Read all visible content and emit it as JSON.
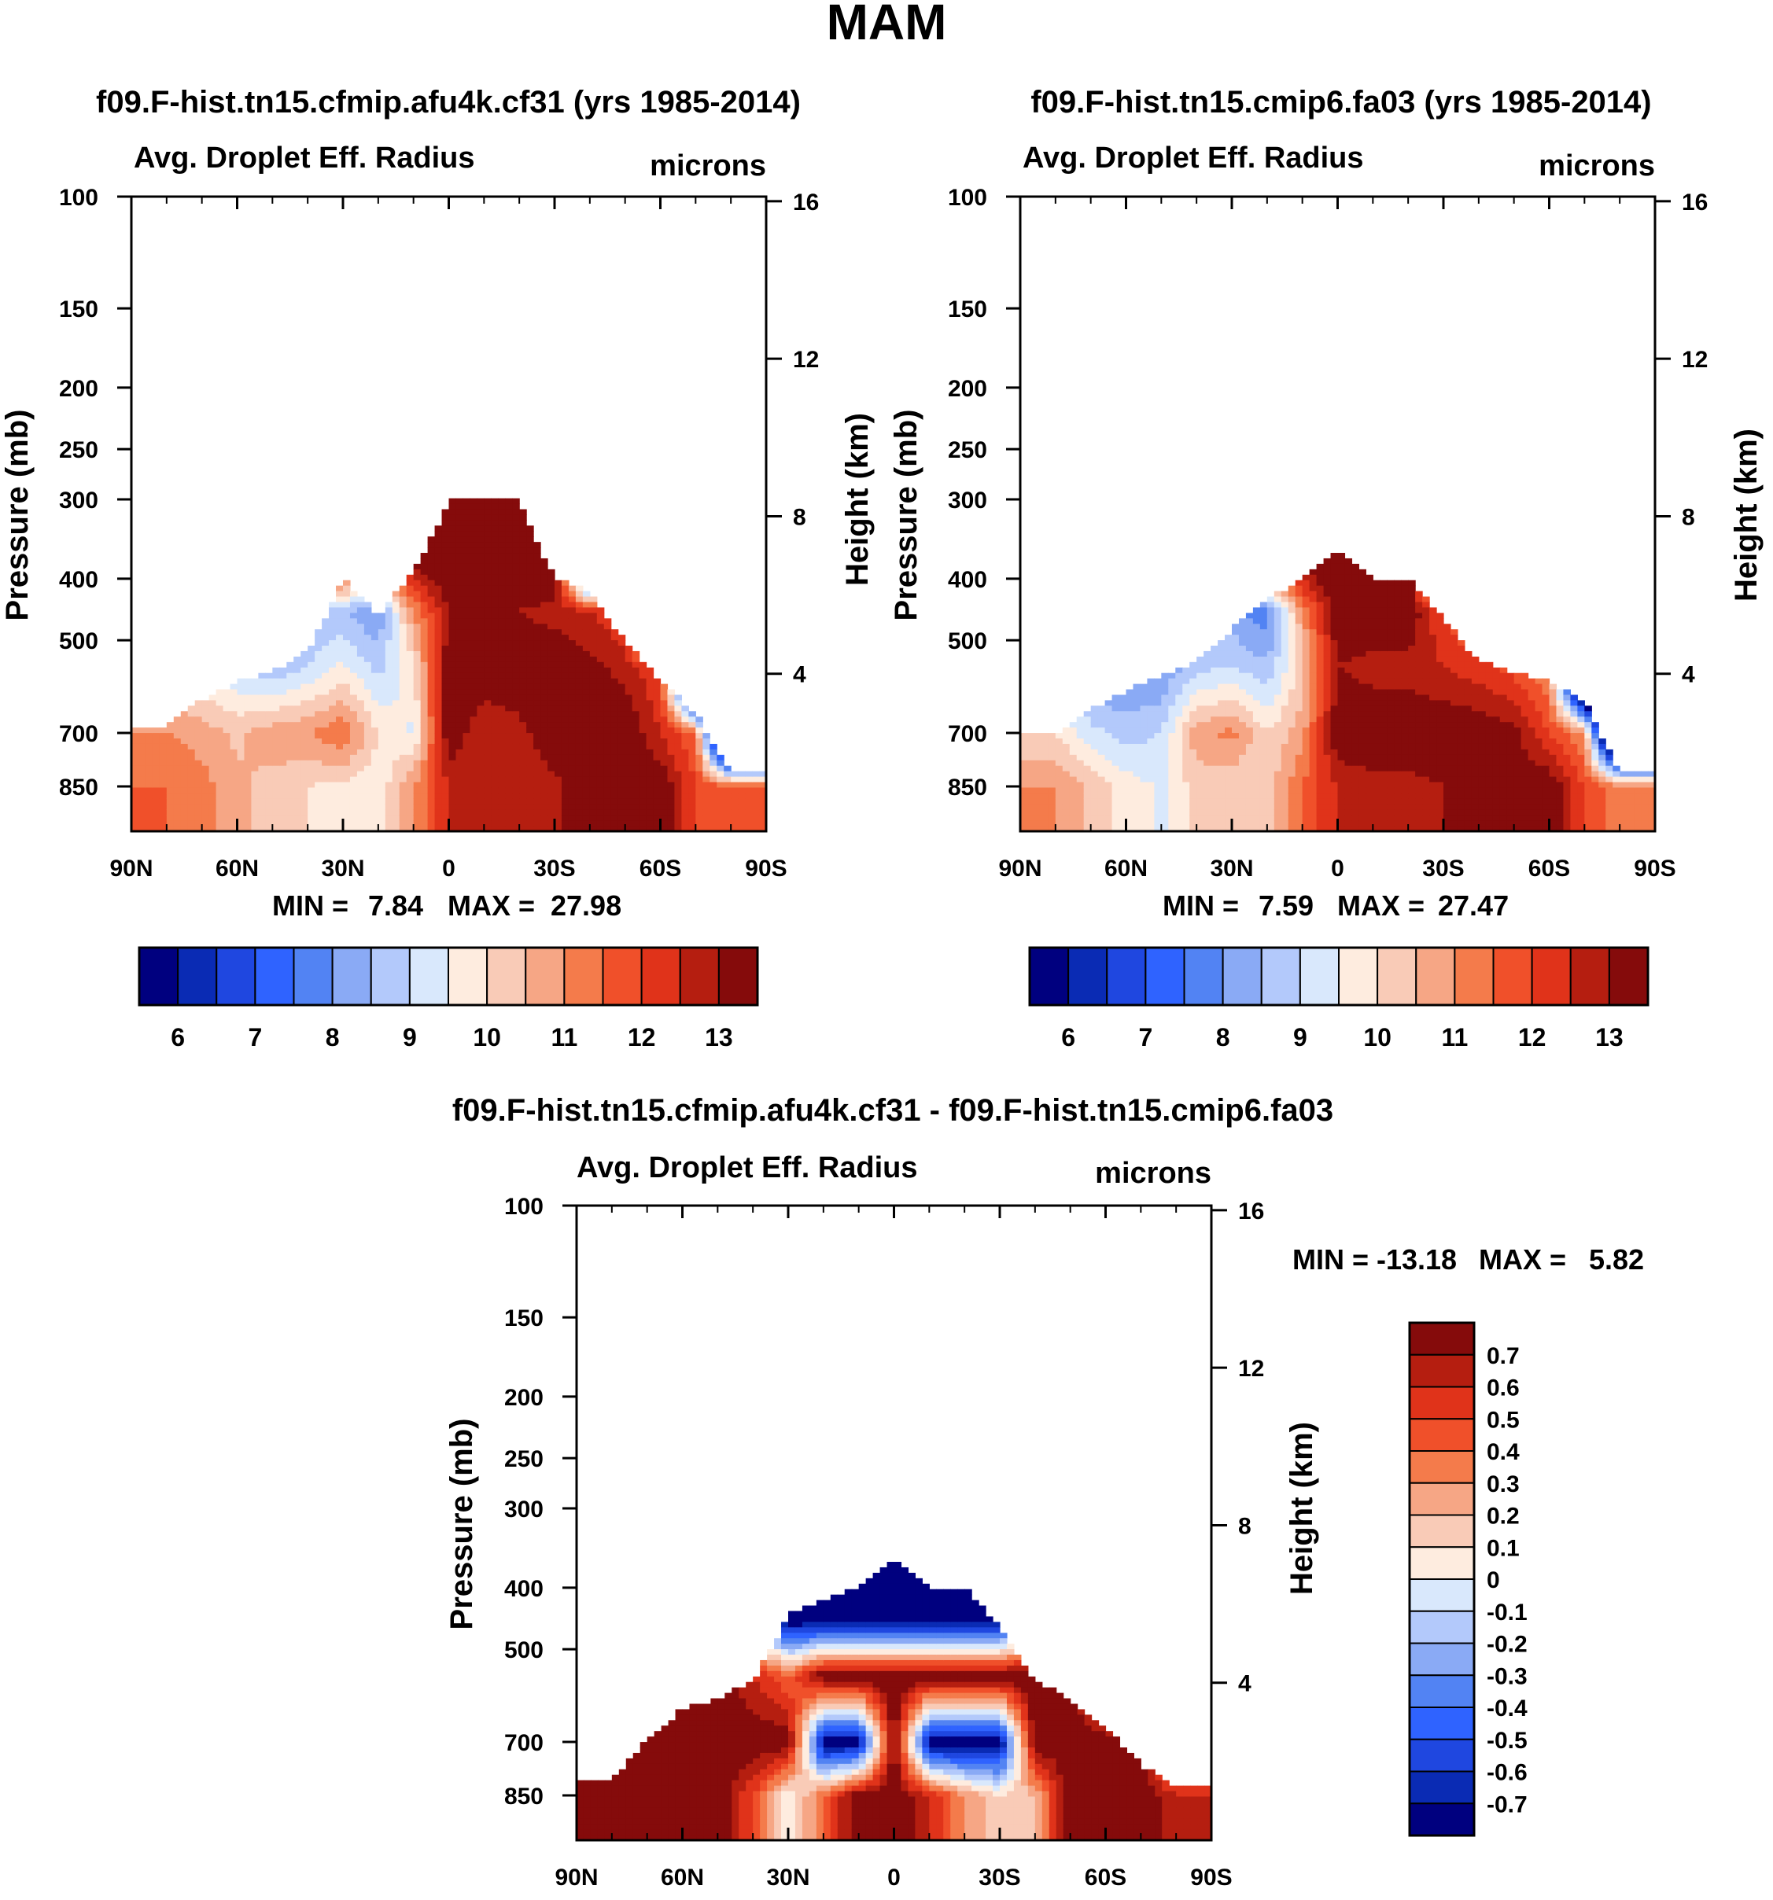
{
  "figure_title": "MAM",
  "colors": {
    "abs_scale": [
      "#00007f",
      "#0a2bb4",
      "#1f47e0",
      "#2f63ff",
      "#5283f3",
      "#8aaaf5",
      "#b3c9fb",
      "#d9e8fc",
      "#feecdf",
      "#f9cbb7",
      "#f6a685",
      "#f47b4b",
      "#f0502a",
      "#e0331a",
      "#b51e10",
      "#850b0b"
    ],
    "diff_scale": [
      "#00007f",
      "#0a2bb4",
      "#1f47e0",
      "#2f63ff",
      "#5283f3",
      "#8aaaf5",
      "#b3c9fb",
      "#d9e8fc",
      "#feecdf",
      "#f9cbb7",
      "#f6a685",
      "#f47b4b",
      "#f0502a",
      "#e0331a",
      "#b51e10",
      "#850b0b"
    ]
  },
  "chart_data": [
    {
      "type": "heatmap",
      "title": "f09.F-hist.tn15.cfmip.afu4k.cf31 (yrs 1985-2014)",
      "left_label": "Avg. Droplet Eff. Radius",
      "right_label": "microns",
      "ylabel": "Pressure (mb)",
      "y2label": "Height (km)",
      "x_ticks": [
        "90N",
        "60N",
        "30N",
        "0",
        "30S",
        "60S",
        "90S"
      ],
      "xlim": [
        90,
        -90
      ],
      "y_ticks": [
        100,
        150,
        200,
        250,
        300,
        400,
        500,
        700,
        850
      ],
      "y_ticklabels": [
        "100",
        "150",
        "200",
        "250",
        "300",
        "400",
        "500",
        "700",
        "850"
      ],
      "ylim": [
        100,
        1000
      ],
      "y2_ticks": [
        16,
        12,
        8,
        4
      ],
      "y2_ticklabels": [
        "16",
        "12",
        "8",
        "4"
      ],
      "min_label": "MIN =",
      "min_value": "7.84",
      "max_label": "MAX =",
      "max_value": "27.98",
      "colorbar_labels": [
        "6",
        "7",
        "8",
        "9",
        "10",
        "11",
        "12",
        "13"
      ],
      "colorbar_levels": [
        5.5,
        6,
        6.5,
        7,
        7.5,
        8,
        8.5,
        9,
        9.5,
        10,
        10.5,
        11,
        11.5,
        12,
        12.5,
        13,
        13.5
      ],
      "field": {
        "lats": [
          80,
          70,
          60,
          50,
          40,
          30,
          20,
          10,
          0,
          -10,
          -20,
          -30,
          -40,
          -50,
          -60,
          -70,
          -80
        ],
        "top_pressure": [
          680,
          620,
          580,
          560,
          520,
          400,
          455,
          390,
          300,
          300,
          300,
          400,
          420,
          500,
          580,
          650,
          800
        ],
        "ref_pressures": [
          850,
          700,
          550,
          450,
          350
        ],
        "values": [
          [
            11.5,
            11.0,
            10.0,
            8.5,
            0
          ],
          [
            11.2,
            10.8,
            9.5,
            8.5,
            0
          ],
          [
            10.6,
            10.4,
            9.0,
            8.0,
            0
          ],
          [
            10.3,
            10.8,
            8.6,
            7.8,
            0
          ],
          [
            10.0,
            11.0,
            9.0,
            8.6,
            14.0
          ],
          [
            9.8,
            11.5,
            9.6,
            8.6,
            14.0
          ],
          [
            9.6,
            10.0,
            8.8,
            8.0,
            14.0
          ],
          [
            11.0,
            9.4,
            9.8,
            11.0,
            14.0
          ],
          [
            12.5,
            13.5,
            13.5,
            13.0,
            14.0
          ],
          [
            12.8,
            12.5,
            13.5,
            13.0,
            14.0
          ],
          [
            12.5,
            12.8,
            13.5,
            13.0,
            14.0
          ],
          [
            12.8,
            13.5,
            13.5,
            12.8,
            14.0
          ],
          [
            13.5,
            13.5,
            13.2,
            12.5,
            0
          ],
          [
            13.5,
            13.5,
            12.8,
            12.0,
            0
          ],
          [
            13.5,
            12.5,
            12.0,
            0,
            0
          ],
          [
            12.0,
            11.5,
            0,
            0,
            0
          ],
          [
            11.5,
            0,
            0,
            0,
            0
          ]
        ]
      }
    },
    {
      "type": "heatmap",
      "title": "f09.F-hist.tn15.cmip6.fa03 (yrs 1985-2014)",
      "left_label": "Avg. Droplet Eff. Radius",
      "right_label": "microns",
      "ylabel": "Pressure (mb)",
      "y2label": "Height (km)",
      "x_ticks": [
        "90N",
        "60N",
        "30N",
        "0",
        "30S",
        "60S",
        "90S"
      ],
      "xlim": [
        90,
        -90
      ],
      "y_ticks": [
        100,
        150,
        200,
        250,
        300,
        400,
        500,
        700,
        850
      ],
      "y_ticklabels": [
        "100",
        "150",
        "200",
        "250",
        "300",
        "400",
        "500",
        "700",
        "850"
      ],
      "ylim": [
        100,
        1000
      ],
      "y2_ticks": [
        16,
        12,
        8,
        4
      ],
      "y2_ticklabels": [
        "16",
        "12",
        "8",
        "4"
      ],
      "min_label": "MIN =",
      "min_value": "7.59",
      "max_label": "MAX =",
      "max_value": "27.47",
      "colorbar_labels": [
        "6",
        "7",
        "8",
        "9",
        "10",
        "11",
        "12",
        "13"
      ],
      "colorbar_levels": [
        5.5,
        6,
        6.5,
        7,
        7.5,
        8,
        8.5,
        9,
        9.5,
        10,
        10.5,
        11,
        11.5,
        12,
        12.5,
        13,
        13.5
      ],
      "field": {
        "lats": [
          80,
          70,
          60,
          50,
          40,
          30,
          20,
          10,
          0,
          -10,
          -20,
          -30,
          -40,
          -50,
          -60,
          -70,
          -80
        ],
        "top_pressure": [
          700,
          640,
          600,
          570,
          540,
          480,
          430,
          400,
          360,
          400,
          400,
          460,
          540,
          560,
          580,
          620,
          800
        ],
        "ref_pressures": [
          850,
          700,
          550,
          450,
          350
        ],
        "values": [
          [
            11.0,
            10.0,
            8.8,
            8.0,
            0
          ],
          [
            10.4,
            9.2,
            8.0,
            7.6,
            0
          ],
          [
            9.8,
            8.8,
            7.8,
            7.4,
            0
          ],
          [
            9.4,
            9.0,
            8.0,
            7.8,
            0
          ],
          [
            10.2,
            10.8,
            8.8,
            8.2,
            0
          ],
          [
            10.0,
            11.2,
            9.0,
            8.2,
            14.0
          ],
          [
            10.2,
            10.0,
            8.6,
            7.6,
            14.0
          ],
          [
            11.5,
            10.8,
            10.2,
            11.0,
            14.0
          ],
          [
            12.5,
            13.5,
            13.0,
            13.5,
            14.0
          ],
          [
            12.8,
            13.5,
            12.8,
            13.5,
            14.0
          ],
          [
            12.8,
            13.5,
            12.8,
            13.5,
            14.0
          ],
          [
            13.0,
            13.5,
            12.5,
            12.0,
            0
          ],
          [
            13.5,
            13.5,
            12.2,
            11.0,
            0
          ],
          [
            13.5,
            13.2,
            11.8,
            10.5,
            0
          ],
          [
            13.5,
            12.0,
            11.0,
            0,
            0
          ],
          [
            12.0,
            11.0,
            0,
            0,
            0
          ],
          [
            11.2,
            0,
            0,
            0,
            0
          ]
        ]
      }
    },
    {
      "type": "heatmap",
      "title": "f09.F-hist.tn15.cfmip.afu4k.cf31 - f09.F-hist.tn15.cmip6.fa03",
      "left_label": "Avg. Droplet Eff. Radius",
      "right_label": "microns",
      "ylabel": "Pressure (mb)",
      "y2label": "Height (km)",
      "x_ticks": [
        "90N",
        "60N",
        "30N",
        "0",
        "30S",
        "60S",
        "90S"
      ],
      "xlim": [
        90,
        -90
      ],
      "y_ticks": [
        100,
        150,
        200,
        250,
        300,
        400,
        500,
        700,
        850
      ],
      "y_ticklabels": [
        "100",
        "150",
        "200",
        "250",
        "300",
        "400",
        "500",
        "700",
        "850"
      ],
      "ylim": [
        100,
        1000
      ],
      "y2_ticks": [
        16,
        12,
        8,
        4
      ],
      "y2_ticklabels": [
        "16",
        "12",
        "8",
        "4"
      ],
      "min_label": "MIN =",
      "min_value": "-13.18",
      "max_label": "MAX =",
      "max_value": "5.82",
      "colorbar_labels": [
        "0.7",
        "0.6",
        "0.5",
        "0.4",
        "0.3",
        "0.2",
        "0.1",
        "0",
        "-0.1",
        "-0.2",
        "-0.3",
        "-0.4",
        "-0.5",
        "-0.6",
        "-0.7"
      ],
      "colorbar_levels": [
        -0.8,
        -0.7,
        -0.6,
        -0.5,
        -0.4,
        -0.3,
        -0.2,
        -0.1,
        0,
        0.1,
        0.2,
        0.3,
        0.4,
        0.5,
        0.6,
        0.7,
        0.8
      ],
      "field": {
        "lats": [
          80,
          70,
          60,
          50,
          40,
          30,
          20,
          10,
          0,
          -10,
          -20,
          -30,
          -40,
          -50,
          -60,
          -70,
          -80
        ],
        "top_pressure": [
          800,
          690,
          620,
          600,
          560,
          440,
          420,
          400,
          360,
          400,
          400,
          460,
          560,
          600,
          660,
          760,
          820
        ],
        "ref_pressures": [
          850,
          700,
          550,
          450,
          350
        ],
        "values": [
          [
            0.8,
            0.8,
            0,
            0,
            0
          ],
          [
            0.8,
            0.8,
            0.8,
            0,
            0
          ],
          [
            0.8,
            0.8,
            0.8,
            0,
            0
          ],
          [
            0.8,
            0.8,
            0.8,
            0,
            0
          ],
          [
            0.5,
            0.8,
            0.6,
            0,
            0
          ],
          [
            0.0,
            0.8,
            0.4,
            -0.8,
            -0.8
          ],
          [
            0.4,
            -0.8,
            0.8,
            -0.8,
            -0.8
          ],
          [
            0.8,
            -0.8,
            0.8,
            -0.8,
            -0.8
          ],
          [
            0.8,
            0.8,
            0.8,
            -0.8,
            -0.8
          ],
          [
            0.6,
            -0.8,
            0.8,
            -0.8,
            -0.8
          ],
          [
            0.3,
            -0.8,
            0.8,
            -0.8,
            -0.8
          ],
          [
            0.1,
            -0.8,
            0.8,
            -0.8,
            0
          ],
          [
            0.2,
            0.8,
            0.8,
            0,
            0
          ],
          [
            0.8,
            0.8,
            0.8,
            0,
            0
          ],
          [
            0.8,
            0.8,
            0,
            0,
            0
          ],
          [
            0.8,
            0.8,
            0,
            0,
            0
          ],
          [
            0.6,
            0,
            0,
            0,
            0
          ]
        ]
      }
    }
  ]
}
